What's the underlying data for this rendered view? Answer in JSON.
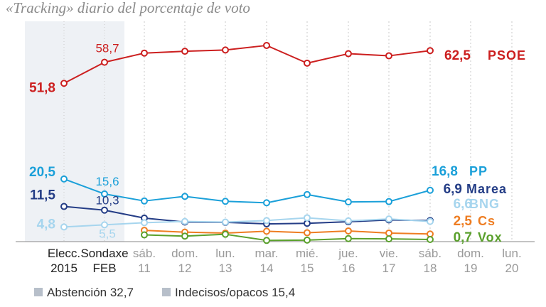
{
  "chart_data": {
    "type": "line",
    "title": "«Tracking» diario del porcentaje de voto",
    "x_labels": [
      {
        "top": "Elecc.",
        "bottom": "2015"
      },
      {
        "top": "Sondaxe",
        "bottom": "FEB"
      },
      {
        "top": "sáb.",
        "bottom": "11"
      },
      {
        "top": "dom.",
        "bottom": "12"
      },
      {
        "top": "lun.",
        "bottom": "13"
      },
      {
        "top": "mar.",
        "bottom": "14"
      },
      {
        "top": "mié.",
        "bottom": "15"
      },
      {
        "top": "jue.",
        "bottom": "16"
      },
      {
        "top": "vie.",
        "bottom": "17"
      },
      {
        "top": "sáb.",
        "bottom": "18"
      },
      {
        "top": "dom.",
        "bottom": "19"
      },
      {
        "top": "lun.",
        "bottom": "20"
      }
    ],
    "ylim": [
      0,
      66
    ],
    "grid": "vertical",
    "shaded_columns": [
      0,
      1
    ],
    "series": [
      {
        "name": "PSOE",
        "color": "#cc1f1f",
        "values": [
          51.8,
          58.7,
          61.7,
          62.3,
          62.7,
          64.2,
          58.4,
          61.5,
          60.8,
          62.5,
          null,
          null
        ],
        "labels": [
          {
            "i": 0,
            "text": "51,8",
            "bold": true
          },
          {
            "i": 1,
            "text": "58,7",
            "bold": false
          },
          {
            "i": 9,
            "text": "62,5",
            "bold": true
          }
        ]
      },
      {
        "name": "PP",
        "color": "#1ba0d9",
        "values": [
          20.5,
          15.6,
          13.3,
          14.8,
          13.2,
          12.7,
          15.4,
          13.0,
          13.1,
          16.8,
          null,
          null
        ],
        "labels": [
          {
            "i": 0,
            "text": "20,5",
            "bold": true
          },
          {
            "i": 1,
            "text": "15,6",
            "bold": false
          },
          {
            "i": 9,
            "text": "16,8",
            "bold": true
          }
        ]
      },
      {
        "name": "Marea",
        "color": "#243d86",
        "values": [
          11.5,
          10.3,
          7.7,
          6.4,
          6.3,
          5.8,
          6.0,
          6.5,
          7.1,
          6.9,
          null,
          null
        ],
        "labels": [
          {
            "i": 0,
            "text": "11,5",
            "bold": true
          },
          {
            "i": 1,
            "text": "10,3",
            "bold": false
          },
          {
            "i": 9,
            "text": "6,9",
            "bold": true
          }
        ]
      },
      {
        "name": "BNG",
        "color": "#a6d5ee",
        "values": [
          4.8,
          5.5,
          6.2,
          6.6,
          6.4,
          6.9,
          7.8,
          6.8,
          7.4,
          6.6,
          null,
          null
        ],
        "labels": [
          {
            "i": 0,
            "text": "4,8",
            "bold": true
          },
          {
            "i": 1,
            "text": "5,5",
            "bold": false
          },
          {
            "i": 9,
            "text": "6,6",
            "bold": true
          }
        ]
      },
      {
        "name": "Cs",
        "color": "#ee7d22",
        "values": [
          null,
          null,
          3.7,
          3.1,
          2.8,
          3.4,
          2.9,
          3.5,
          2.8,
          2.5,
          null,
          null
        ],
        "labels": [
          {
            "i": 9,
            "text": "2,5",
            "bold": true
          }
        ]
      },
      {
        "name": "Vox",
        "color": "#5aa02c",
        "values": [
          null,
          null,
          2.2,
          1.8,
          2.4,
          0.4,
          0.5,
          1.0,
          0.9,
          0.7,
          null,
          null
        ],
        "labels": [
          {
            "i": 9,
            "text": "0,7",
            "bold": true
          }
        ]
      }
    ],
    "legend": [
      {
        "label": "Abstención",
        "value": "32,7",
        "color": "#b7bfca"
      },
      {
        "label": "Indecisos/opacos",
        "value": "15,4",
        "color": "#b7bfca"
      }
    ],
    "legend_position": "bottom-left"
  }
}
